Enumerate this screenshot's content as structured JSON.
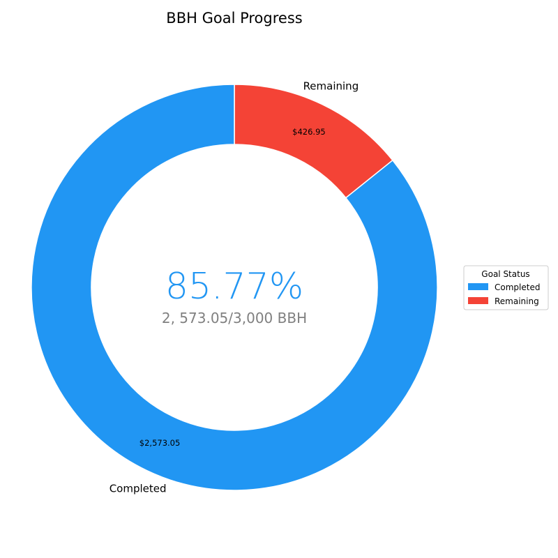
{
  "chart_data": {
    "type": "pie",
    "style": "donut",
    "title": "BBH Goal Progress",
    "categories": [
      "Completed",
      "Remaining"
    ],
    "values": [
      2573.05,
      426.95
    ],
    "value_labels": [
      "$2,573.05",
      "$426.95"
    ],
    "colors": [
      "#2196F3",
      "#F44336"
    ],
    "center_percent": "85.77%",
    "center_subtitle": "2, 573.05/3,000 BBH",
    "center_percent_color": "#2196F3",
    "legend": {
      "title": "Goal Status",
      "position": "right",
      "entries": [
        "Completed",
        "Remaining"
      ]
    }
  }
}
